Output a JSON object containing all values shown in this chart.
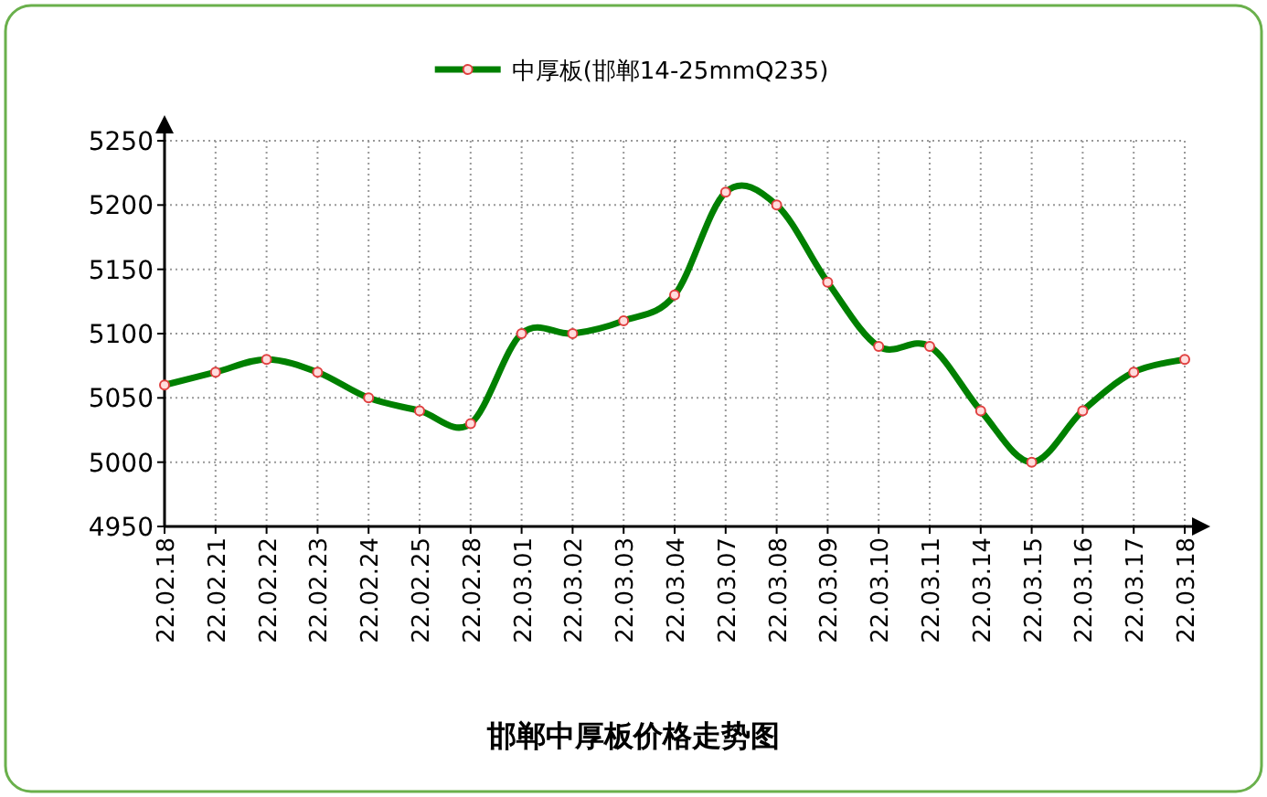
{
  "chart_data": {
    "type": "line",
    "title": "邯郸中厚板价格走势图",
    "categories": [
      "22.02.18",
      "22.02.21",
      "22.02.22",
      "22.02.23",
      "22.02.24",
      "22.02.25",
      "22.02.28",
      "22.03.01",
      "22.03.02",
      "22.03.03",
      "22.03.04",
      "22.03.07",
      "22.03.08",
      "22.03.09",
      "22.03.10",
      "22.03.11",
      "22.03.14",
      "22.03.15",
      "22.03.16",
      "22.03.17",
      "22.03.18"
    ],
    "series": [
      {
        "name": "中厚板(邯郸14-25mmQ235)",
        "color": "#008000",
        "values": [
          5060,
          5070,
          5080,
          5070,
          5050,
          5040,
          5030,
          5100,
          5100,
          5110,
          5130,
          5210,
          5200,
          5140,
          5090,
          5090,
          5040,
          5000,
          5040,
          5070,
          5080
        ]
      }
    ],
    "ylim": [
      4950,
      5250
    ],
    "yticks": [
      4950,
      5000,
      5050,
      5100,
      5150,
      5200,
      5250
    ],
    "grid": true,
    "legend": "top",
    "marker": "circle",
    "line_style": "solid"
  }
}
